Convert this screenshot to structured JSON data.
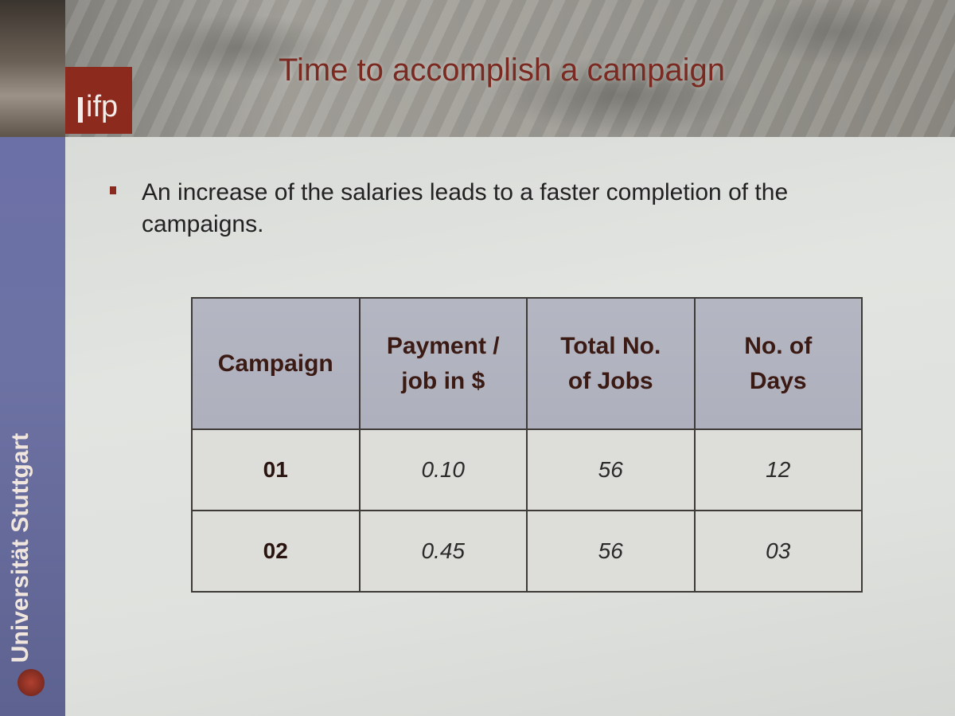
{
  "header": {
    "logo_text": "ifp",
    "title": "Time to accomplish a campaign"
  },
  "sidebar": {
    "university": "Universität Stuttgart"
  },
  "bullet": {
    "text": "An increase of the salaries leads to a faster completion of the campaigns."
  },
  "table": {
    "headers": [
      "Campaign",
      "Payment / job in $",
      "Total No. of Jobs",
      "No. of Days"
    ],
    "rows": [
      [
        "01",
        "0.10",
        "56",
        "12"
      ],
      [
        "02",
        "0.45",
        "56",
        "03"
      ]
    ]
  },
  "colors": {
    "accent": "#8d2a1e",
    "stripe": "#6b70a6",
    "table_header": "#b4b6c2"
  }
}
